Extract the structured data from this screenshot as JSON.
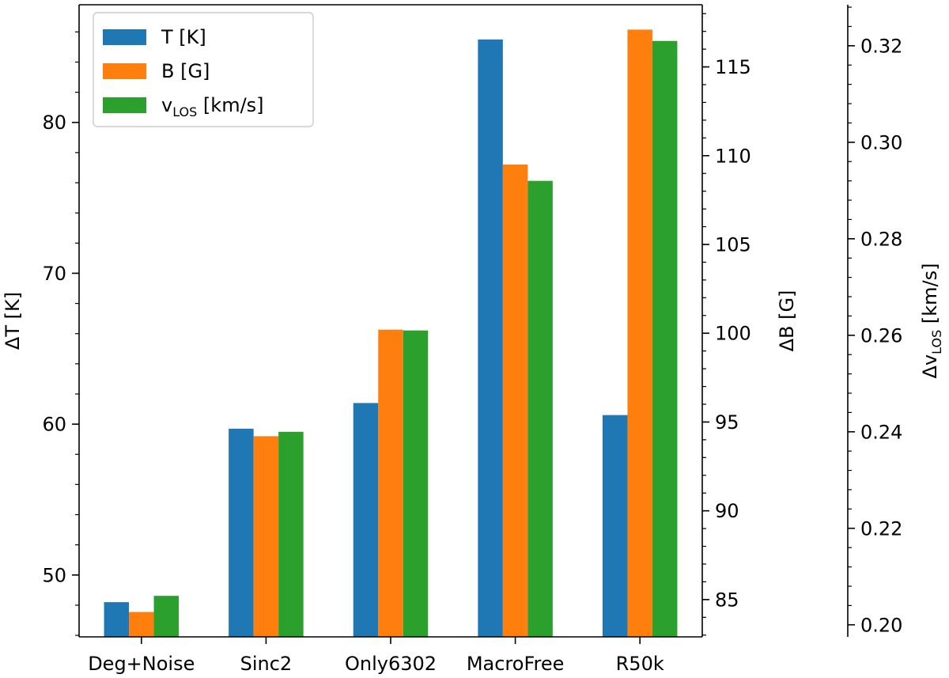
{
  "chart_data": {
    "type": "bar",
    "categories": [
      "Deg+Noise",
      "Sinc2",
      "Only6302",
      "MacroFree",
      "R50k"
    ],
    "series": [
      {
        "name": "T [K]",
        "name_main": "T [K]",
        "name_sub": "",
        "name_tail": "",
        "axis": "left",
        "color": "#1f77b4",
        "values": [
          48.2,
          59.7,
          61.4,
          85.5,
          60.6
        ]
      },
      {
        "name": "B [G]",
        "name_main": "B [G]",
        "name_sub": "",
        "name_tail": "",
        "axis": "right1",
        "color": "#ff7f0e",
        "values": [
          84.3,
          94.2,
          100.2,
          109.5,
          117.1
        ]
      },
      {
        "name": "vLOS [km/s]",
        "name_main": "v",
        "name_sub": "LOS",
        "name_tail": " [km/s]",
        "axis": "right2",
        "color": "#2ca02c",
        "values": [
          0.206,
          0.24,
          0.261,
          0.292,
          0.321
        ]
      }
    ],
    "axes": {
      "left": {
        "label": "ΔT [K]",
        "label_main": "ΔT [K]",
        "label_sub": "",
        "label_tail": "",
        "ylim": [
          45.9,
          87.8
        ],
        "ticks": [
          50,
          60,
          70,
          80
        ],
        "tick_labels": [
          "50",
          "60",
          "70",
          "80"
        ],
        "minor_step": 2
      },
      "right1": {
        "label": "ΔB [G]",
        "label_main": "ΔB [G]",
        "label_sub": "",
        "label_tail": "",
        "ylim": [
          82.9,
          118.5
        ],
        "ticks": [
          85,
          90,
          95,
          100,
          105,
          110,
          115
        ],
        "tick_labels": [
          "85",
          "90",
          "95",
          "100",
          "105",
          "110",
          "115"
        ],
        "minor_step": 1
      },
      "right2": {
        "label": "ΔvLOS [km/s]",
        "label_main": "Δv",
        "label_sub": "LOS",
        "label_tail": " [km/s]",
        "ylim": [
          0.1975,
          0.3285
        ],
        "ticks": [
          0.2,
          0.22,
          0.24,
          0.26,
          0.28,
          0.3,
          0.32
        ],
        "tick_labels": [
          "0.20",
          "0.22",
          "0.24",
          "0.26",
          "0.28",
          "0.30",
          "0.32"
        ],
        "minor_step": 0.004
      }
    },
    "legend": "top-left",
    "grid": false
  }
}
